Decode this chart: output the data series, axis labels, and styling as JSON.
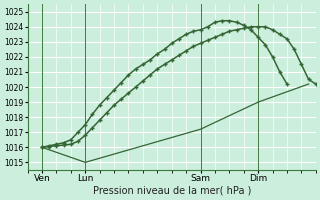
{
  "title": "Pression niveau de la mer( hPa )",
  "bg_color": "#cceedd",
  "grid_color": "#ffffff",
  "line_color": "#336633",
  "xlim": [
    0,
    80
  ],
  "ylim": [
    1014.5,
    1025.5
  ],
  "yticks": [
    1015,
    1016,
    1017,
    1018,
    1019,
    1020,
    1021,
    1022,
    1023,
    1024,
    1025
  ],
  "xtick_labels": [
    "Ven",
    "Lun",
    "Sam",
    "Dim"
  ],
  "xtick_positions": [
    4,
    16,
    48,
    64
  ],
  "vline_positions": [
    4,
    16,
    48,
    64
  ],
  "line1_x": [
    4,
    6,
    8,
    10,
    12,
    14,
    16,
    18,
    20,
    22,
    24,
    26,
    28,
    30,
    32,
    34,
    36,
    38,
    40,
    42,
    44,
    46,
    48,
    50,
    52,
    54,
    56,
    58,
    60,
    62,
    64,
    66,
    68,
    70,
    72
  ],
  "line1_y": [
    1016.0,
    1016.1,
    1016.2,
    1016.3,
    1016.5,
    1017.0,
    1017.5,
    1018.2,
    1018.8,
    1019.3,
    1019.8,
    1020.3,
    1020.8,
    1021.2,
    1021.5,
    1021.8,
    1022.2,
    1022.5,
    1022.9,
    1023.2,
    1023.5,
    1023.7,
    1023.8,
    1024.0,
    1024.3,
    1024.4,
    1024.4,
    1024.3,
    1024.1,
    1023.8,
    1023.3,
    1022.8,
    1022.0,
    1021.0,
    1020.2
  ],
  "line2_x": [
    4,
    6,
    8,
    10,
    12,
    14,
    16,
    18,
    20,
    22,
    24,
    26,
    28,
    30,
    32,
    34,
    36,
    38,
    40,
    42,
    44,
    46,
    48,
    50,
    52,
    54,
    56,
    58,
    60,
    62,
    64,
    66,
    68,
    70,
    72,
    74,
    76,
    78,
    80
  ],
  "line2_y": [
    1016.0,
    1016.05,
    1016.1,
    1016.15,
    1016.2,
    1016.4,
    1016.8,
    1017.3,
    1017.8,
    1018.3,
    1018.8,
    1019.2,
    1019.6,
    1020.0,
    1020.4,
    1020.8,
    1021.2,
    1021.5,
    1021.8,
    1022.1,
    1022.4,
    1022.7,
    1022.9,
    1023.1,
    1023.3,
    1023.5,
    1023.7,
    1023.8,
    1023.9,
    1024.0,
    1024.0,
    1024.0,
    1023.8,
    1023.5,
    1023.2,
    1022.5,
    1021.5,
    1020.5,
    1020.2
  ],
  "line3_x": [
    4,
    16,
    48,
    64,
    78
  ],
  "line3_y": [
    1016.0,
    1015.0,
    1017.2,
    1019.0,
    1020.2
  ],
  "marker_x1": [
    4,
    6,
    8,
    10,
    12,
    14,
    16,
    18,
    20,
    22,
    24,
    26,
    28,
    30,
    32,
    34,
    36,
    38,
    40,
    42,
    44,
    46,
    48,
    50,
    52,
    54,
    56,
    58,
    60,
    62,
    64,
    66,
    68,
    70,
    72
  ],
  "marker_y1": [
    1016.0,
    1016.1,
    1016.2,
    1016.3,
    1016.5,
    1017.0,
    1017.5,
    1018.2,
    1018.8,
    1019.3,
    1019.8,
    1020.3,
    1020.8,
    1021.2,
    1021.5,
    1021.8,
    1022.2,
    1022.5,
    1022.9,
    1023.2,
    1023.5,
    1023.7,
    1023.8,
    1024.0,
    1024.3,
    1024.4,
    1024.4,
    1024.3,
    1024.1,
    1023.8,
    1023.3,
    1022.8,
    1022.0,
    1021.0,
    1020.2
  ],
  "marker_x2": [
    4,
    6,
    8,
    10,
    12,
    14,
    16,
    18,
    20,
    22,
    24,
    26,
    28,
    30,
    32,
    34,
    36,
    38,
    40,
    42,
    44,
    46,
    48,
    50,
    52,
    54,
    56,
    58,
    60,
    62,
    64,
    66,
    68,
    70,
    72,
    74,
    76,
    78,
    80
  ],
  "marker_y2": [
    1016.0,
    1016.05,
    1016.1,
    1016.15,
    1016.2,
    1016.4,
    1016.8,
    1017.3,
    1017.8,
    1018.3,
    1018.8,
    1019.2,
    1019.6,
    1020.0,
    1020.4,
    1020.8,
    1021.2,
    1021.5,
    1021.8,
    1022.1,
    1022.4,
    1022.7,
    1022.9,
    1023.1,
    1023.3,
    1023.5,
    1023.7,
    1023.8,
    1023.9,
    1024.0,
    1024.0,
    1024.0,
    1023.8,
    1023.5,
    1023.2,
    1022.5,
    1021.5,
    1020.5,
    1020.2
  ]
}
